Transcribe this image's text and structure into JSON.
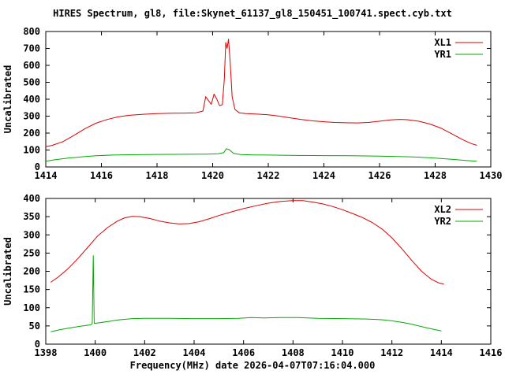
{
  "title": "HIRES Spectrum, gl8, file:Skynet_61137_gl8_150451_100741.spect.cyb.txt",
  "xlabel": "Frequency(MHz) date 2026-04-07T07:16:04.000",
  "chart_data": [
    {
      "type": "line",
      "title": "",
      "ylabel": "Uncalibrated",
      "xlim": [
        1414,
        1430
      ],
      "ylim": [
        0,
        800
      ],
      "xticks": [
        1414,
        1416,
        1418,
        1420,
        1422,
        1424,
        1426,
        1428,
        1430
      ],
      "yticks": [
        0,
        100,
        200,
        300,
        400,
        500,
        600,
        700,
        800
      ],
      "grid": false,
      "legend_position": "top-right",
      "series": [
        {
          "name": "XL1",
          "color": "#dd0000",
          "points": [
            [
              1414.0,
              120
            ],
            [
              1414.2,
              126
            ],
            [
              1414.6,
              148
            ],
            [
              1415.0,
              185
            ],
            [
              1415.4,
              225
            ],
            [
              1415.8,
              258
            ],
            [
              1416.2,
              280
            ],
            [
              1416.6,
              296
            ],
            [
              1417.0,
              305
            ],
            [
              1417.5,
              311
            ],
            [
              1418.0,
              315
            ],
            [
              1418.5,
              317
            ],
            [
              1419.0,
              318
            ],
            [
              1419.4,
              320
            ],
            [
              1419.65,
              330
            ],
            [
              1419.75,
              415
            ],
            [
              1419.85,
              392
            ],
            [
              1419.95,
              370
            ],
            [
              1420.05,
              430
            ],
            [
              1420.15,
              400
            ],
            [
              1420.25,
              362
            ],
            [
              1420.35,
              368
            ],
            [
              1420.42,
              520
            ],
            [
              1420.47,
              735
            ],
            [
              1420.52,
              700
            ],
            [
              1420.57,
              755
            ],
            [
              1420.63,
              620
            ],
            [
              1420.7,
              415
            ],
            [
              1420.8,
              340
            ],
            [
              1420.95,
              320
            ],
            [
              1421.2,
              315
            ],
            [
              1421.6,
              312
            ],
            [
              1422.0,
              308
            ],
            [
              1422.4,
              300
            ],
            [
              1422.8,
              290
            ],
            [
              1423.2,
              280
            ],
            [
              1423.6,
              272
            ],
            [
              1424.0,
              267
            ],
            [
              1424.4,
              263
            ],
            [
              1424.8,
              261
            ],
            [
              1425.2,
              260
            ],
            [
              1425.6,
              263
            ],
            [
              1426.0,
              270
            ],
            [
              1426.4,
              278
            ],
            [
              1426.7,
              281
            ],
            [
              1427.0,
              279
            ],
            [
              1427.4,
              270
            ],
            [
              1427.8,
              254
            ],
            [
              1428.2,
              230
            ],
            [
              1428.6,
              196
            ],
            [
              1429.0,
              160
            ],
            [
              1429.3,
              138
            ],
            [
              1429.5,
              128
            ]
          ]
        },
        {
          "name": "YR1",
          "color": "#00aa00",
          "points": [
            [
              1414.0,
              34
            ],
            [
              1414.3,
              42
            ],
            [
              1414.8,
              52
            ],
            [
              1415.3,
              60
            ],
            [
              1415.8,
              66
            ],
            [
              1416.4,
              70
            ],
            [
              1417.0,
              72
            ],
            [
              1418.0,
              74
            ],
            [
              1419.0,
              75
            ],
            [
              1419.8,
              76
            ],
            [
              1420.2,
              78
            ],
            [
              1420.4,
              85
            ],
            [
              1420.5,
              108
            ],
            [
              1420.6,
              102
            ],
            [
              1420.75,
              80
            ],
            [
              1421.0,
              73
            ],
            [
              1421.5,
              71
            ],
            [
              1422.0,
              70
            ],
            [
              1423.0,
              68
            ],
            [
              1424.0,
              67
            ],
            [
              1425.0,
              66
            ],
            [
              1426.0,
              64
            ],
            [
              1426.8,
              61
            ],
            [
              1427.4,
              58
            ],
            [
              1428.0,
              52
            ],
            [
              1428.6,
              45
            ],
            [
              1429.1,
              38
            ],
            [
              1429.5,
              34
            ]
          ]
        }
      ]
    },
    {
      "type": "line",
      "title": "",
      "ylabel": "Uncalibrated",
      "xlim": [
        1398,
        1416
      ],
      "ylim": [
        0,
        400
      ],
      "xticks": [
        1398,
        1400,
        1402,
        1404,
        1406,
        1408,
        1410,
        1412,
        1414,
        1416
      ],
      "yticks": [
        0,
        50,
        100,
        150,
        200,
        250,
        300,
        350,
        400
      ],
      "grid": false,
      "legend_position": "top-right",
      "series": [
        {
          "name": "XL2",
          "color": "#dd0000",
          "points": [
            [
              1398.2,
              170
            ],
            [
              1398.5,
              184
            ],
            [
              1398.9,
              207
            ],
            [
              1399.3,
              235
            ],
            [
              1399.7,
              266
            ],
            [
              1400.1,
              297
            ],
            [
              1400.5,
              320
            ],
            [
              1400.9,
              338
            ],
            [
              1401.2,
              347
            ],
            [
              1401.5,
              351
            ],
            [
              1401.8,
              350
            ],
            [
              1402.2,
              345
            ],
            [
              1402.6,
              338
            ],
            [
              1403.0,
              333
            ],
            [
              1403.4,
              330
            ],
            [
              1403.8,
              331
            ],
            [
              1404.2,
              336
            ],
            [
              1404.6,
              344
            ],
            [
              1405.0,
              353
            ],
            [
              1405.5,
              363
            ],
            [
              1406.0,
              372
            ],
            [
              1406.5,
              380
            ],
            [
              1407.0,
              387
            ],
            [
              1407.5,
              392
            ],
            [
              1408.0,
              394
            ],
            [
              1408.4,
              394
            ],
            [
              1408.8,
              390
            ],
            [
              1409.2,
              385
            ],
            [
              1409.6,
              378
            ],
            [
              1410.0,
              369
            ],
            [
              1410.4,
              359
            ],
            [
              1410.8,
              348
            ],
            [
              1411.2,
              334
            ],
            [
              1411.6,
              316
            ],
            [
              1412.0,
              292
            ],
            [
              1412.4,
              262
            ],
            [
              1412.8,
              230
            ],
            [
              1413.2,
              200
            ],
            [
              1413.6,
              178
            ],
            [
              1413.9,
              168
            ],
            [
              1414.1,
              165
            ]
          ]
        },
        {
          "name": "YR2",
          "color": "#00aa00",
          "points": [
            [
              1398.2,
              34
            ],
            [
              1398.6,
              40
            ],
            [
              1399.0,
              45
            ],
            [
              1399.4,
              49
            ],
            [
              1399.8,
              53
            ],
            [
              1399.88,
              56
            ],
            [
              1399.92,
              243
            ],
            [
              1399.96,
              57
            ],
            [
              1400.2,
              59
            ],
            [
              1400.6,
              63
            ],
            [
              1401.0,
              67
            ],
            [
              1401.5,
              70
            ],
            [
              1402.0,
              71
            ],
            [
              1403.0,
              71
            ],
            [
              1404.0,
              70
            ],
            [
              1405.0,
              70
            ],
            [
              1405.8,
              71
            ],
            [
              1406.3,
              73
            ],
            [
              1406.8,
              72
            ],
            [
              1407.5,
              73
            ],
            [
              1408.2,
              73
            ],
            [
              1409.0,
              71
            ],
            [
              1410.0,
              70
            ],
            [
              1411.0,
              69
            ],
            [
              1411.6,
              67
            ],
            [
              1412.0,
              64
            ],
            [
              1412.4,
              60
            ],
            [
              1412.8,
              55
            ],
            [
              1413.2,
              48
            ],
            [
              1413.6,
              42
            ],
            [
              1414.0,
              36
            ]
          ]
        }
      ]
    }
  ]
}
